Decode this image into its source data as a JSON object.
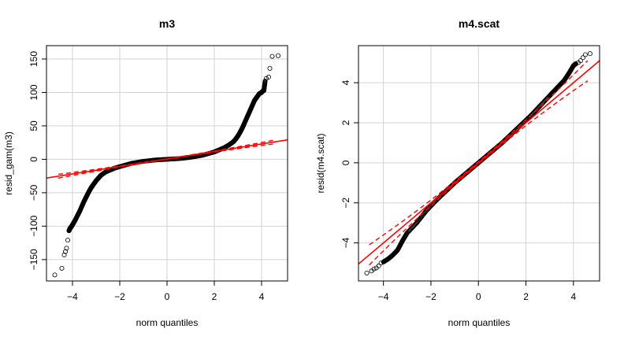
{
  "chart_data": [
    {
      "type": "scatter",
      "subtype": "qq-plot",
      "title": "m3",
      "xlabel": "norm quantiles",
      "ylabel": "resid_gam(m3)",
      "xlim": [
        -5.1,
        5.1
      ],
      "ylim": [
        -182,
        170
      ],
      "xticks": [
        -4,
        -2,
        0,
        2,
        4
      ],
      "yticks": [
        -150,
        -100,
        -50,
        0,
        50,
        100,
        150
      ],
      "grid": true,
      "points_color": "#000000",
      "reference_line": {
        "slope": 5.6,
        "intercept": 0.5,
        "color": "#ff0000"
      },
      "envelope": {
        "x_from": -4.6,
        "x_to": 4.6,
        "color": "#ff0000"
      },
      "series": [
        {
          "x": [
            -4.75,
            -4.45,
            -4.35,
            -4.3,
            -4.25,
            -4.2,
            -4.15,
            -4.1,
            -4.05,
            -4.0,
            -3.9,
            -3.8,
            -3.7,
            -3.6,
            -3.5,
            -3.4,
            -3.3,
            -3.2,
            -3.1,
            -3.0,
            -2.9,
            -2.8,
            -2.6,
            -2.4,
            -2.2,
            -2.0,
            -1.5,
            -1.0,
            -0.5,
            0.0,
            0.5,
            1.0,
            1.5,
            2.0,
            2.2,
            2.4,
            2.6,
            2.8,
            2.9,
            3.0,
            3.1,
            3.2,
            3.3,
            3.4,
            3.5,
            3.6,
            3.7,
            3.8,
            3.9,
            4.0,
            4.05,
            4.1,
            4.15,
            4.2,
            4.3,
            4.35,
            4.45,
            4.7
          ],
          "y": [
            -173,
            -163,
            -143,
            -138,
            -133,
            -121,
            -107,
            -103,
            -101,
            -98,
            -92,
            -85,
            -78,
            -70,
            -62,
            -55,
            -48,
            -42,
            -37,
            -32,
            -28,
            -24,
            -19,
            -16,
            -13,
            -11,
            -6,
            -3,
            -1,
            0,
            1,
            3,
            6,
            11,
            14,
            17,
            21,
            26,
            30,
            35,
            41,
            48,
            56,
            64,
            72,
            80,
            88,
            93,
            98,
            100,
            102,
            103,
            117,
            121,
            123,
            136,
            154,
            155
          ]
        }
      ]
    },
    {
      "type": "scatter",
      "subtype": "qq-plot",
      "title": "m4.scat",
      "xlabel": "norm quantiles",
      "ylabel": "resid(m4.scat)",
      "xlim": [
        -5.05,
        5.1
      ],
      "ylim": [
        -5.9,
        5.85
      ],
      "xticks": [
        -4,
        -2,
        0,
        2,
        4
      ],
      "yticks": [
        -4,
        -2,
        0,
        2,
        4
      ],
      "grid": true,
      "points_color": "#000000",
      "reference_line": {
        "slope": 1.0,
        "intercept": 0.0,
        "color": "#ff0000"
      },
      "envelope": {
        "x_from": -4.6,
        "x_to": 4.6,
        "color": "#ff0000"
      },
      "series": [
        {
          "x": [
            -4.7,
            -4.5,
            -4.4,
            -4.3,
            -4.2,
            -4.1,
            -4.0,
            -3.8,
            -3.6,
            -3.4,
            -3.2,
            -3.0,
            -2.6,
            -2.2,
            -1.8,
            -1.4,
            -1.0,
            -0.6,
            -0.2,
            0.2,
            0.6,
            1.0,
            1.4,
            1.8,
            2.2,
            2.6,
            3.0,
            3.2,
            3.4,
            3.6,
            3.8,
            4.0,
            4.1,
            4.2,
            4.3,
            4.4,
            4.5,
            4.7
          ],
          "y": [
            -5.5,
            -5.4,
            -5.3,
            -5.25,
            -5.15,
            -5.0,
            -4.95,
            -4.8,
            -4.6,
            -4.35,
            -3.9,
            -3.5,
            -3.0,
            -2.4,
            -1.9,
            -1.45,
            -1.0,
            -0.6,
            -0.2,
            0.2,
            0.6,
            1.0,
            1.45,
            1.9,
            2.35,
            2.85,
            3.35,
            3.6,
            3.85,
            4.1,
            4.45,
            4.85,
            4.95,
            5.0,
            5.1,
            5.25,
            5.4,
            5.45
          ]
        }
      ]
    }
  ]
}
